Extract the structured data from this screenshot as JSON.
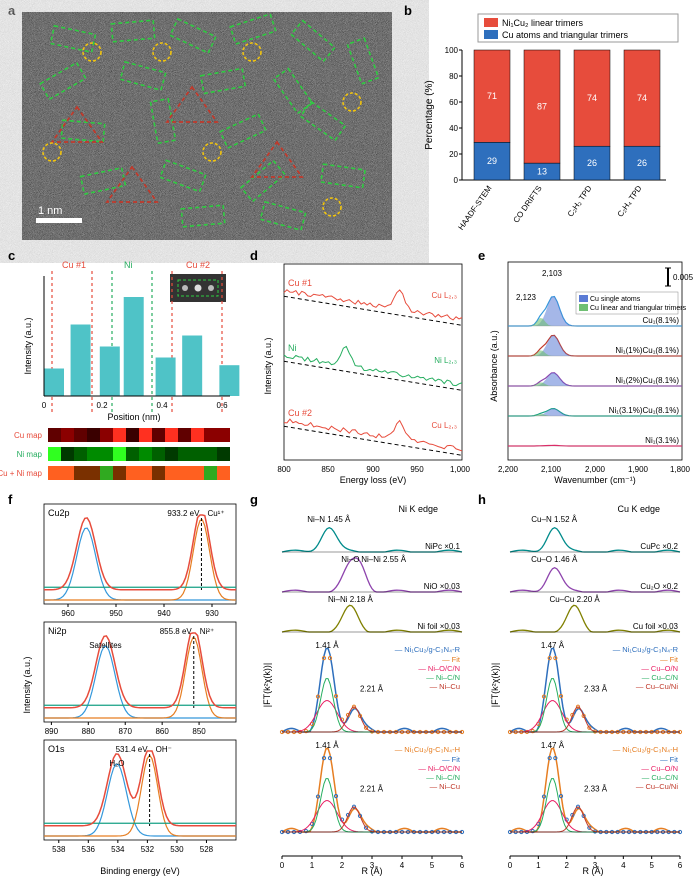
{
  "labels": {
    "a": "a",
    "b": "b",
    "c": "c",
    "d": "d",
    "e": "e",
    "f": "f",
    "g": "g",
    "h": "h"
  },
  "panel_a": {
    "scale_bar": "1 nm",
    "rect_color": "#2ecc40",
    "tri_color": "#c0392b",
    "circ_color": "#f1c40f"
  },
  "panel_b": {
    "type": "stacked-bar",
    "categories": [
      "HAADF-STEM",
      "CO DRIFTS",
      "C₂H₂ TPD",
      "C₂H₄ TPD"
    ],
    "top_values": [
      71,
      87,
      74,
      74
    ],
    "bottom_values": [
      29,
      13,
      26,
      26
    ],
    "top_color": "#e74c3c",
    "bottom_color": "#2e6fbd",
    "legend": [
      "Ni₁Cu₂ linear trimers",
      "Cu atoms and triangular trimers"
    ],
    "ylabel": "Percentage (%)",
    "ylim": [
      0,
      100
    ],
    "ytick_step": 20,
    "bg": "#ffffff"
  },
  "panel_c": {
    "regions": [
      "Cu #1",
      "Ni",
      "Cu #2"
    ],
    "region_colors": [
      "#e74c3c",
      "#27ae60",
      "#e74c3c"
    ],
    "xlabel": "Position (nm)",
    "ylabel": "Intensity (a.u.)",
    "bar_color": "#4fc3c7",
    "x_ticks": [
      "0",
      "0.2",
      "0.4",
      "0.6"
    ],
    "x_positions": [
      0,
      0.1,
      0.21,
      0.3,
      0.42,
      0.52,
      0.66
    ],
    "bars": [
      0.25,
      0.65,
      0.45,
      0.9,
      0.35,
      0.55,
      0.28
    ],
    "maps": [
      "Cu map",
      "Ni map",
      "Cu + Ni map"
    ]
  },
  "panel_d": {
    "xlabel": "Energy loss (eV)",
    "ylabel": "Intensity (a.u.)",
    "xlim": [
      800,
      1000
    ],
    "xtick_step": 50,
    "traces": [
      "Cu #1",
      "Ni",
      "Cu #2"
    ],
    "trace_labels_right": [
      "Cu L₂,₃",
      "Ni L₂,₃",
      "Cu L₂,₃"
    ],
    "colors": [
      "#e74c3c",
      "#27ae60",
      "#e74c3c"
    ]
  },
  "panel_e": {
    "xlabel": "Wavenumber (cm⁻¹)",
    "ylabel": "Absorbance (a.u.)",
    "xlim": [
      2200,
      1800
    ],
    "xtick_step": 100,
    "scalebar": "0.005",
    "peaks": [
      "2,103",
      "2,123"
    ],
    "legend": [
      "Cu single atoms",
      "Cu linear and triangular trimers"
    ],
    "legend_colors": [
      "#5b7bd5",
      "#6fbf73"
    ],
    "samples": [
      "Cu₁(8.1%)",
      "Ni₁(1%)Cu₁(8.1%)",
      "Ni₁(2%)Cu₁(8.1%)",
      "Ni₁(3.1%)Cu₁(8.1%)",
      "Ni₁(3.1%)"
    ],
    "sample_colors": [
      "#3498db",
      "#c0392b",
      "#8e44ad",
      "#16a085",
      "#e91e63"
    ]
  },
  "panel_f": {
    "xlabel": "Binding energy (eV)",
    "ylabel": "Intensity (a.u.)",
    "subs": [
      {
        "name": "Cu2p",
        "peak": "933.2 eV",
        "species": "Cu¹⁺",
        "xlim": [
          965,
          925
        ],
        "ticks": [
          960,
          950,
          940,
          930
        ]
      },
      {
        "name": "Ni2p",
        "peak": "855.8 eV",
        "species": "Ni²⁺",
        "extra": "Satellites",
        "xlim": [
          892,
          840
        ],
        "ticks": [
          890,
          880,
          870,
          860,
          850
        ]
      },
      {
        "name": "O1s",
        "peak": "531.4 eV",
        "species": "OH⁻",
        "extra": "H₂O",
        "xlim": [
          539,
          526
        ],
        "ticks": [
          538,
          536,
          534,
          532,
          530,
          528
        ]
      }
    ],
    "colors": {
      "data": "#000",
      "fit": "#e74c3c",
      "blue": "#3498db",
      "orange": "#e67e22",
      "green": "#16a085"
    }
  },
  "panel_g": {
    "title": "Ni K edge",
    "xlabel": "R (Å)",
    "ylabel": "|FT(k²χ(k))|",
    "xlim": [
      0,
      6
    ],
    "refs": [
      {
        "name": "NiPc ×0.1",
        "peak": "Ni–N 1.45 Å",
        "color": "#008b8b"
      },
      {
        "name": "NiO ×0.03",
        "peak": "Ni–O",
        "peak2": "Ni–Ni 2.55 Å",
        "color": "#8e44ad"
      },
      {
        "name": "Ni foil ×0.03",
        "peak": "Ni–Ni 2.18 Å",
        "color": "#808000"
      }
    ],
    "fits": [
      {
        "sample": "Ni₁Cu₂/g-C₃N₄-R",
        "p1": "1.41 Å",
        "p2": "2.21 Å",
        "legend": [
          "Fit",
          "Ni–O/C/N",
          "Ni–C/N",
          "Ni–Cu"
        ],
        "legend_colors": [
          "#e67e22",
          "#e91e63",
          "#27ae60",
          "#c0392b"
        ],
        "main": "#2e6fbd"
      },
      {
        "sample": "Ni₁Cu₂/g-C₃N₄-H",
        "p1": "1.41 Å",
        "p2": "2.21 Å",
        "legend": [
          "Fit",
          "Ni–O/C/N",
          "Ni–C/N",
          "Ni–Cu"
        ],
        "legend_colors": [
          "#2e6fbd",
          "#e91e63",
          "#27ae60",
          "#c0392b"
        ],
        "main": "#e67e22"
      }
    ]
  },
  "panel_h": {
    "title": "Cu K edge",
    "xlabel": "R (Å)",
    "ylabel": "|FT(k²χ(k))|",
    "xlim": [
      0,
      6
    ],
    "refs": [
      {
        "name": "CuPc ×0.2",
        "peak": "Cu–N 1.52 Å",
        "color": "#008b8b"
      },
      {
        "name": "Cu₂O ×0.2",
        "peak": "Cu–O 1.46 Å",
        "color": "#8e44ad"
      },
      {
        "name": "Cu foil ×0.03",
        "peak": "Cu–Cu 2.20 Å",
        "color": "#808000"
      }
    ],
    "fits": [
      {
        "sample": "Ni₁Cu₂/g-C₃N₄-R",
        "p1": "1.47 Å",
        "p2": "2.33 Å",
        "legend": [
          "Fit",
          "Cu–O/N",
          "Cu–C/N",
          "Cu–Cu/Ni"
        ],
        "legend_colors": [
          "#e67e22",
          "#e91e63",
          "#27ae60",
          "#c0392b"
        ],
        "main": "#2e6fbd"
      },
      {
        "sample": "Ni₁Cu₂/g-C₃N₄-H",
        "p1": "1.47 Å",
        "p2": "2.33 Å",
        "legend": [
          "Fit",
          "Cu–O/N",
          "Cu–C/N",
          "Cu–Cu/Ni"
        ],
        "legend_colors": [
          "#2e6fbd",
          "#e91e63",
          "#27ae60",
          "#c0392b"
        ],
        "main": "#e67e22"
      }
    ]
  }
}
